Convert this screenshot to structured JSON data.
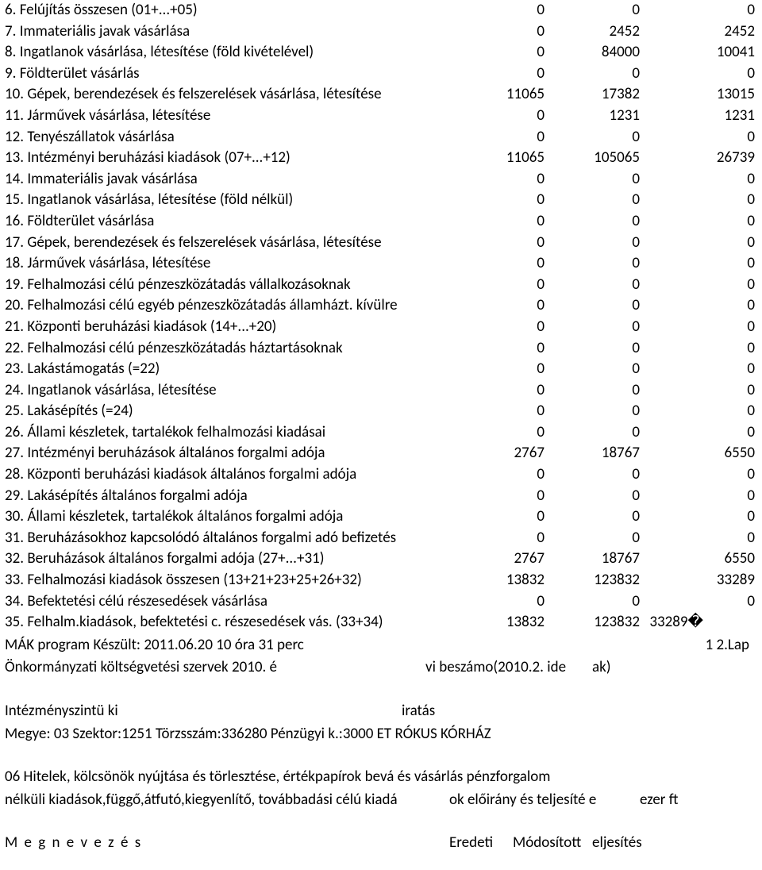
{
  "rows": [
    {
      "label": "6.   Felújítás összesen (01+...+05)",
      "c1": "0",
      "c2": "0",
      "c3": "0"
    },
    {
      "label": "7. Immateriális javak vásárlása",
      "c1": "0",
      "c2": "2452",
      "c3": "2452"
    },
    {
      "label": "8. Ingatlanok vásárlása, létesítése (föld kivételével)",
      "c1": "0",
      "c2": "84000",
      "c3": "10041"
    },
    {
      "label": "9. Földterület vásárlás",
      "c1": "0",
      "c2": "0",
      "c3": "0"
    },
    {
      "label": "10. Gépek, berendezések és felszerelések vásárlása, létesítése",
      "c1": "11065",
      "c2": "17382",
      "c3": "13015"
    },
    {
      "label": "11. Járművek vásárlása, létesítése",
      "c1": "0",
      "c2": "1231",
      "c3": "1231"
    },
    {
      "label": "12. Tenyészállatok vásárlása",
      "c1": "0",
      "c2": "0",
      "c3": "0"
    },
    {
      "label": "13.   Intézményi beruházási kiadások (07+...+12)",
      "c1": "11065",
      "c2": "105065",
      "c3": "26739"
    },
    {
      "label": "14. Immateriális javak vásárlása",
      "c1": "0",
      "c2": "0",
      "c3": "0"
    },
    {
      "label": "15. Ingatlanok vásárlása, létesítése (föld nélkül)",
      "c1": "0",
      "c2": "0",
      "c3": "0"
    },
    {
      "label": "16. Földterület vásárlása",
      "c1": "0",
      "c2": "0",
      "c3": "0"
    },
    {
      "label": "17. Gépek, berendezések és felszerelések vásárlása, létesítése",
      "c1": "0",
      "c2": "0",
      "c3": "0"
    },
    {
      "label": "18. Járművek vásárlása, létesítése",
      "c1": "0",
      "c2": "0",
      "c3": "0"
    },
    {
      "label": "19. Felhalmozási célú pénzeszközátadás vállalkozásoknak",
      "c1": "0",
      "c2": "0",
      "c3": "0"
    },
    {
      "label": "20. Felhalmozási célú egyéb pénzeszközátadás államházt. kívülre",
      "c1": "0",
      "c2": "0",
      "c3": "0"
    },
    {
      "label": "21.   Központi beruházási kiadások (14+...+20)",
      "c1": "0",
      "c2": "0",
      "c3": "0"
    },
    {
      "label": "22. Felhalmozási célú pénzeszközátadás háztartásoknak",
      "c1": "0",
      "c2": "0",
      "c3": "0"
    },
    {
      "label": "23.   Lakástámogatás (=22)",
      "c1": "0",
      "c2": "0",
      "c3": "0"
    },
    {
      "label": "24. Ingatlanok vásárlása, létesítése",
      "c1": "0",
      "c2": "0",
      "c3": "0"
    },
    {
      "label": "25.   Lakásépítés (=24)",
      "c1": "0",
      "c2": "0",
      "c3": "0"
    },
    {
      "label": "26. Állami készletek, tartalékok felhalmozási kiadásai",
      "c1": "0",
      "c2": "0",
      "c3": "0"
    },
    {
      "label": "27. Intézményi beruházások általános forgalmi adója",
      "c1": "2767",
      "c2": "18767",
      "c3": "6550"
    },
    {
      "label": "28. Központi beruházási kiadások általános forgalmi adója",
      "c1": "0",
      "c2": "0",
      "c3": "0"
    },
    {
      "label": "29. Lakásépítés általános forgalmi adója",
      "c1": "0",
      "c2": "0",
      "c3": "0"
    },
    {
      "label": "30. Állami készletek, tartalékok általános forgalmi adója",
      "c1": "0",
      "c2": "0",
      "c3": "0"
    },
    {
      "label": "31. Beruházásokhoz kapcsolódó általános forgalmi adó befizetés",
      "c1": "0",
      "c2": "0",
      "c3": "0"
    },
    {
      "label": "32.   Beruházások általános forgalmi adója (27+...+31)",
      "c1": "2767",
      "c2": "18767",
      "c3": "6550"
    },
    {
      "label": "33.   Felhalmozási kiadások összesen (13+21+23+25+26+32)",
      "c1": "13832",
      "c2": "123832",
      "c3": "33289"
    },
    {
      "label": "34.   Befektetési célú részesedések vásárlása",
      "c1": "0",
      "c2": "0",
      "c3": "0"
    },
    {
      "label": "35.   Felhalm.kiadások, befektetési c. részesedések vás. (33+34)",
      "c1": "13832",
      "c2": "123832",
      "c3": "33289�"
    }
  ],
  "footer": {
    "program_line_left": "MÁK program Készült: 2011.06.20  10 óra 31 perc",
    "program_line_right": "1 2.Lap",
    "budget_line_left": "Önkormányzati költségvetési szervek 2010. é",
    "budget_line_mid": "vi beszámo(2010.2. ide",
    "budget_line_right": "ak)",
    "inst_left": "Intézményszintü ki",
    "inst_right": "iratás",
    "county_line": "Megye: 03   Szektor:1251   Törzsszám:336280 Pénzügyi k.:3000  ET RÓKUS KÓRHÁZ",
    "section_l1": "06 Hitelek, kölcsönök nyújtása és törlesztése, értékpapírok bevá és vásárlás pénzforgalom",
    "section_l2_left": "nélküli kiadások,függő,átfutó,kiegyenlítő, továbbadási célú kiadá",
    "section_l2_mid": "ok előirány és teljesíté e",
    "section_l2_right": "ezer ft",
    "header_label": "M e g n e v e z é s",
    "header_c1": "Eredeti",
    "header_c2": "Módosított",
    "header_c3": "eljesítés"
  }
}
